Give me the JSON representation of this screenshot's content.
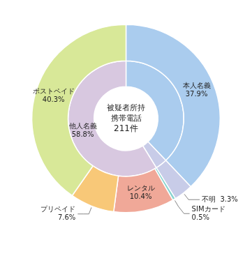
{
  "chart_data": {
    "type": "doughnut",
    "data_labels": true,
    "series": [
      {
        "values": [
          37.9,
          3.3,
          0.5,
          10.4,
          7.6,
          40.3
        ],
        "colors": [
          "#aaccee",
          "#c8cce8",
          "#88d4d0",
          "#f0a898",
          "#f8c878",
          "#d8e898"
        ],
        "value_labels": [
          "本人名義\n37.9%",
          "不明  3.3%",
          "SIMカード\n0.5%",
          "レンタル\n10.4%",
          "プリペイド\n7.6%",
          "ポストペイド\n40.3%"
        ]
      },
      {
        "values": [
          37.9,
          3.3,
          58.8
        ],
        "colors": [
          "#aaccee",
          "#c8cce8",
          "#d8c8e0"
        ],
        "value_labels": [
          null,
          null,
          "他人名義\n58.8%"
        ]
      }
    ],
    "annotations": [
      "被疑者所持",
      "携帯電話",
      "211件"
    ]
  }
}
